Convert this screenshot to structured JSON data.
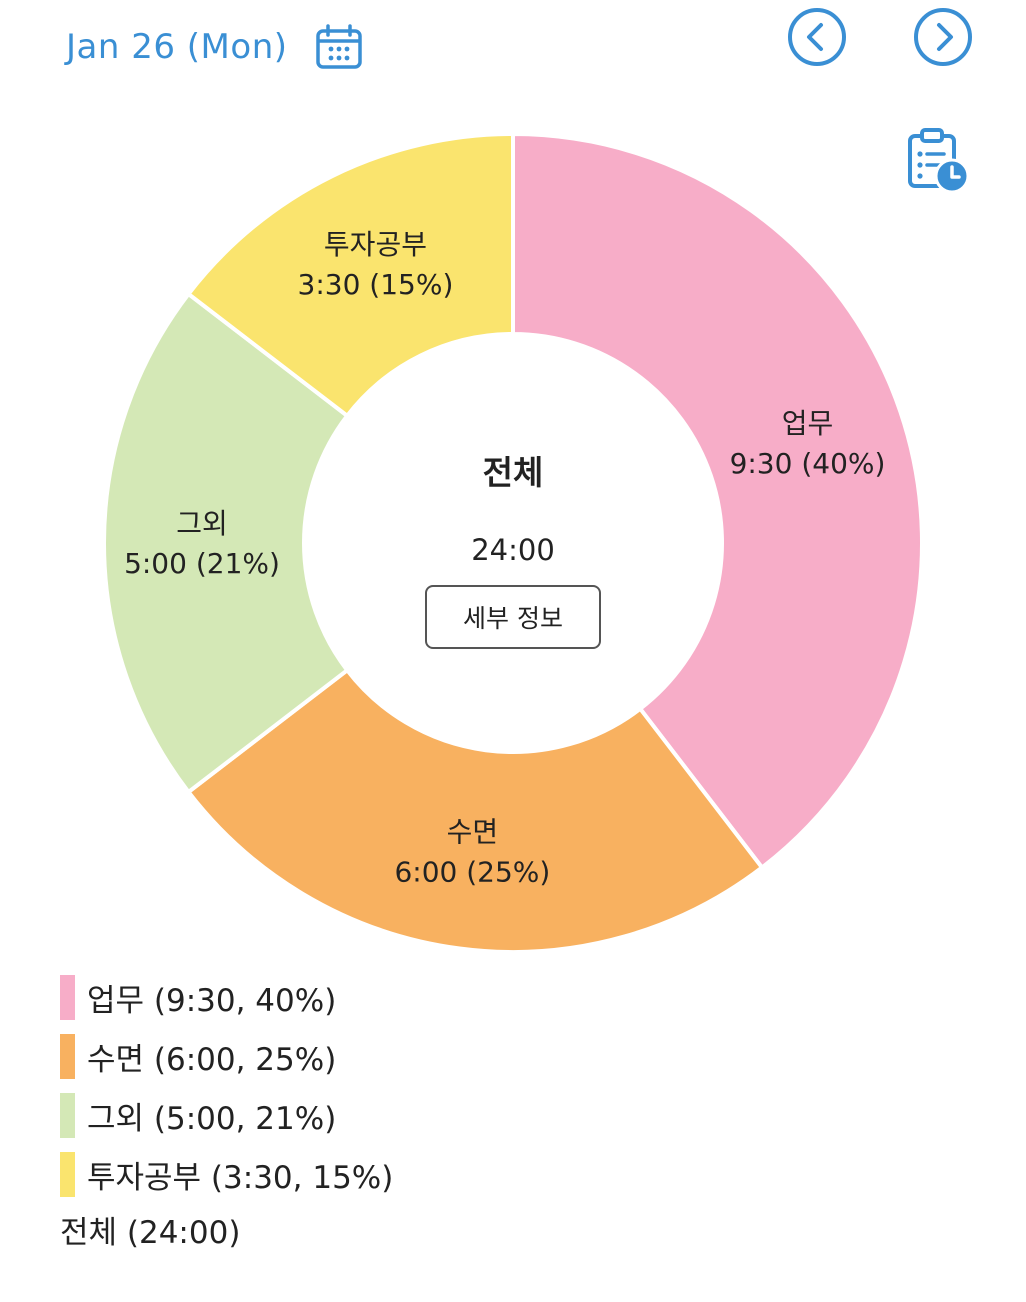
{
  "header": {
    "date": "Jan 26 (Mon)",
    "calendar_icon": "calendar-icon",
    "prev_icon": "chevron-left-circle-icon",
    "next_icon": "chevron-right-circle-icon",
    "report_icon": "clipboard-clock-icon",
    "accent_color": "#3a8fd4"
  },
  "center": {
    "title": "전체",
    "total": "24:00",
    "detail_button": "세부 정보"
  },
  "chart_data": {
    "type": "pie",
    "variant": "donut",
    "total_label": "전체",
    "total_time": "24:00",
    "slices": [
      {
        "name": "업무",
        "time": "9:30",
        "percent": 40,
        "hours": 9.5,
        "color": "#f7adc8",
        "label_time": "9:30 (40%)"
      },
      {
        "name": "수면",
        "time": "6:00",
        "percent": 25,
        "hours": 6.0,
        "color": "#f8b160",
        "label_time": "6:00 (25%)"
      },
      {
        "name": "그외",
        "time": "5:00",
        "percent": 21,
        "hours": 5.0,
        "color": "#d4e8b6",
        "label_time": "5:00 (21%)"
      },
      {
        "name": "투자공부",
        "time": "3:30",
        "percent": 15,
        "hours": 3.5,
        "color": "#fae46e",
        "label_time": "3:30 (15%)"
      }
    ]
  },
  "legend": {
    "items": [
      {
        "text": "업무 (9:30, 40%)",
        "color": "#f7adc8"
      },
      {
        "text": "수면 (6:00, 25%)",
        "color": "#f8b160"
      },
      {
        "text": "그외 (5:00, 21%)",
        "color": "#d4e8b6"
      },
      {
        "text": "투자공부 (3:30, 15%)",
        "color": "#fae46e"
      }
    ],
    "total": "전체 (24:00)"
  }
}
